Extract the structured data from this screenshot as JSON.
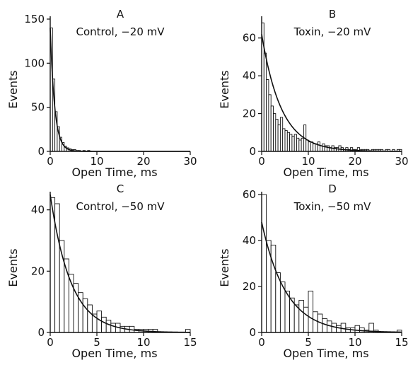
{
  "chart_data": [
    {
      "type": "bar",
      "panel": "A",
      "title": "Control, −20 mV",
      "xlabel": "Open Time, ms",
      "ylabel": "Events",
      "xlim": [
        0,
        30
      ],
      "ylim": [
        0,
        150
      ],
      "xticks": [
        0,
        10,
        20,
        30
      ],
      "yticks": [
        0,
        50,
        100,
        150
      ],
      "bin_width": 0.5,
      "values": [
        140,
        82,
        45,
        28,
        16,
        10,
        6,
        4,
        3,
        2,
        2,
        1,
        1,
        0,
        1,
        0,
        1
      ],
      "fit": {
        "amplitude": 140,
        "tau": 0.95
      }
    },
    {
      "type": "bar",
      "panel": "B",
      "title": "Toxin, −20 mV",
      "xlabel": "Open Time, ms",
      "ylabel": "Events",
      "xlim": [
        0,
        30
      ],
      "ylim": [
        0,
        70
      ],
      "xticks": [
        0,
        10,
        20,
        30
      ],
      "yticks": [
        0,
        20,
        40,
        60
      ],
      "bin_width": 0.5,
      "values": [
        68,
        52,
        38,
        30,
        24,
        20,
        17,
        14,
        18,
        12,
        11,
        10,
        9,
        8,
        9,
        7,
        6,
        7,
        14,
        6,
        5,
        5,
        4,
        4,
        5,
        3,
        4,
        3,
        3,
        2,
        3,
        2,
        2,
        3,
        2,
        1,
        2,
        1,
        2,
        1,
        1,
        2,
        1,
        1,
        1,
        1,
        0,
        1,
        1,
        1,
        1,
        1,
        0,
        1,
        1,
        0,
        1,
        0,
        1,
        1
      ],
      "fit": {
        "amplitude": 62,
        "tau": 4.2
      }
    },
    {
      "type": "bar",
      "panel": "C",
      "title": "Control, −50 mV",
      "xlabel": "Open Time, ms",
      "ylabel": "Events",
      "xlim": [
        0,
        15
      ],
      "ylim": [
        0,
        45
      ],
      "xticks": [
        0,
        5,
        10,
        15
      ],
      "yticks": [
        0,
        20,
        40
      ],
      "bin_width": 0.5,
      "values": [
        44,
        42,
        30,
        24,
        19,
        16,
        13,
        11,
        9,
        6,
        7,
        5,
        4,
        3,
        3,
        2,
        2,
        2,
        1,
        1,
        1,
        1,
        1,
        0,
        0,
        0,
        0,
        0,
        0,
        1
      ],
      "fit": {
        "amplitude": 45,
        "tau": 2.2
      }
    },
    {
      "type": "bar",
      "panel": "D",
      "title": "Toxin, −50 mV",
      "xlabel": "Open Time, ms",
      "ylabel": "Events",
      "xlim": [
        0,
        15
      ],
      "ylim": [
        0,
        60
      ],
      "xticks": [
        0,
        5,
        10,
        15
      ],
      "yticks": [
        0,
        20,
        40,
        60
      ],
      "bin_width": 0.5,
      "values": [
        60,
        40,
        38,
        26,
        22,
        18,
        15,
        12,
        14,
        11,
        18,
        9,
        8,
        6,
        5,
        4,
        3,
        4,
        2,
        2,
        3,
        2,
        1,
        4,
        1,
        0,
        0,
        0,
        0,
        1
      ],
      "fit": {
        "amplitude": 48,
        "tau": 2.6
      }
    }
  ]
}
